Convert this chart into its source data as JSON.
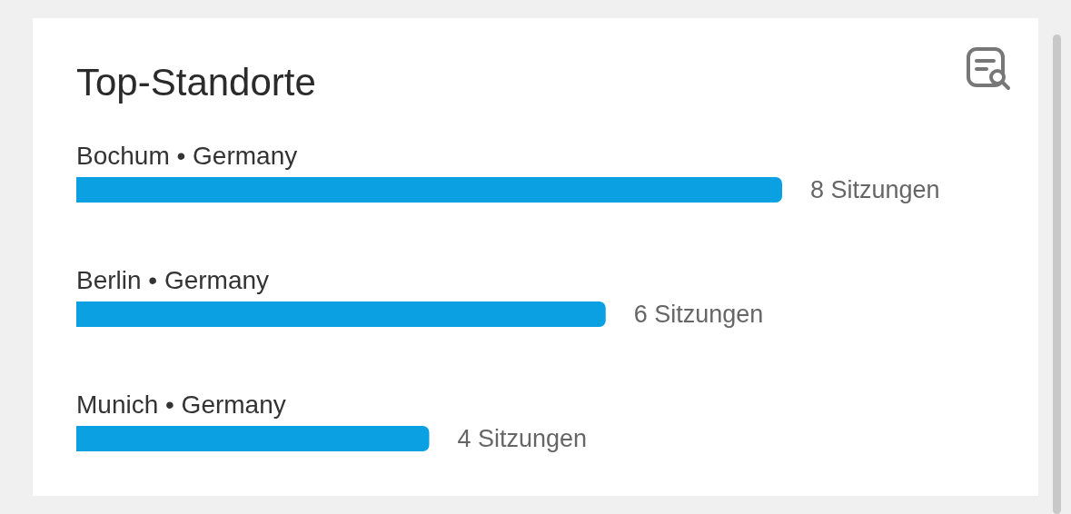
{
  "chart_data": {
    "type": "bar",
    "orientation": "horizontal",
    "title": "Top-Standorte",
    "categories": [
      "Bochum • Germany",
      "Berlin • Germany",
      "Munich • Germany"
    ],
    "values": [
      8,
      6,
      4
    ],
    "value_labels": [
      "8 Sitzungen",
      "6 Sitzungen",
      "4 Sitzungen"
    ],
    "color": "#0aa0e2",
    "xlim": [
      0,
      8
    ],
    "grid": false,
    "legend": false
  }
}
